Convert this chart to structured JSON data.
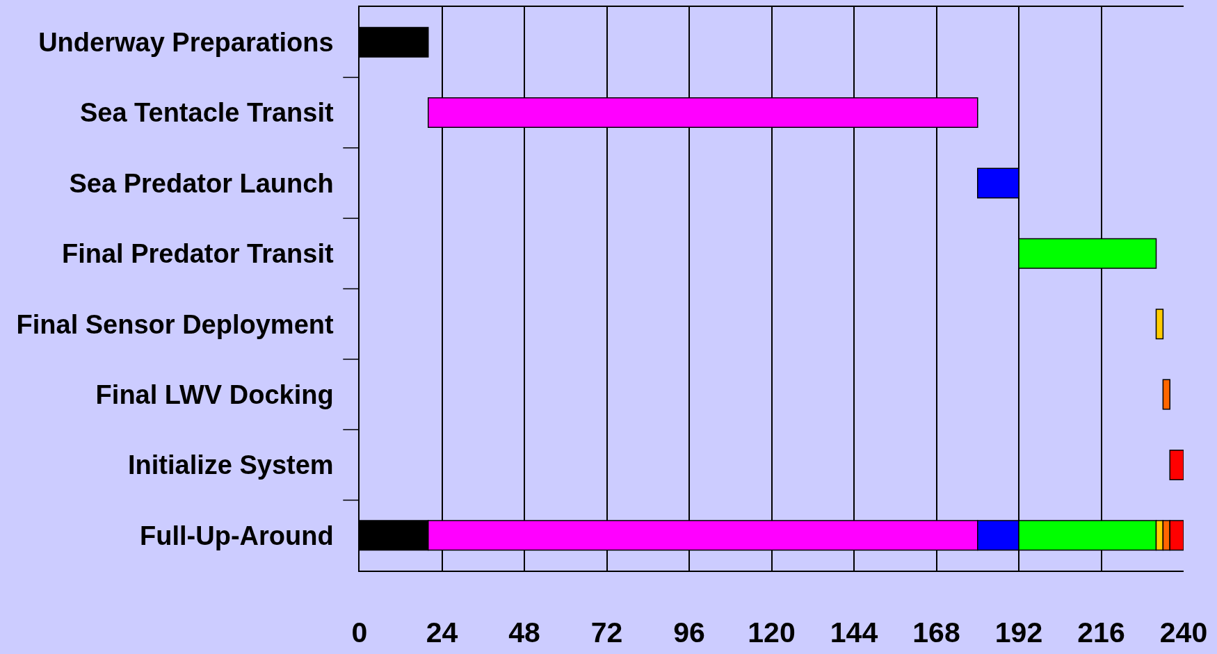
{
  "chart_data": {
    "type": "bar",
    "orientation": "horizontal",
    "categories": [
      "Underway Preparations",
      "Sea Tentacle Transit",
      "Sea Predator Launch",
      "Final Predator Transit",
      "Final Sensor Deployment",
      "Final LWV Docking",
      "Initialize System",
      "Full-Up-Around"
    ],
    "series": [
      {
        "color": "#000000",
        "values": [
          20,
          null,
          null,
          null,
          null,
          null,
          null,
          20
        ],
        "base": [
          0,
          null,
          null,
          null,
          null,
          null,
          null,
          0
        ]
      },
      {
        "color": "#ff00ff",
        "values": [
          null,
          160,
          null,
          null,
          null,
          null,
          null,
          160
        ],
        "base": [
          null,
          20,
          null,
          null,
          null,
          null,
          null,
          20
        ]
      },
      {
        "color": "#0000ff",
        "values": [
          null,
          null,
          12,
          null,
          null,
          null,
          null,
          12
        ],
        "base": [
          null,
          null,
          180,
          null,
          null,
          null,
          null,
          180
        ]
      },
      {
        "color": "#00ff00",
        "values": [
          null,
          null,
          null,
          40,
          null,
          null,
          null,
          40
        ],
        "base": [
          null,
          null,
          null,
          192,
          null,
          null,
          null,
          192
        ]
      },
      {
        "color": "#ffcc00",
        "values": [
          null,
          null,
          null,
          null,
          2,
          null,
          null,
          2
        ],
        "base": [
          null,
          null,
          null,
          null,
          232,
          null,
          null,
          232
        ]
      },
      {
        "color": "#ff6600",
        "values": [
          null,
          null,
          null,
          null,
          null,
          2,
          null,
          2
        ],
        "base": [
          null,
          null,
          null,
          null,
          null,
          234,
          null,
          234
        ]
      },
      {
        "color": "#ff0000",
        "values": [
          null,
          null,
          null,
          null,
          null,
          null,
          4,
          4
        ],
        "base": [
          null,
          null,
          null,
          null,
          null,
          null,
          236,
          236
        ]
      }
    ],
    "xlim": [
      0,
      240
    ],
    "xticks": [
      0,
      24,
      48,
      72,
      96,
      120,
      144,
      168,
      192,
      216,
      240
    ],
    "grid": "x"
  }
}
